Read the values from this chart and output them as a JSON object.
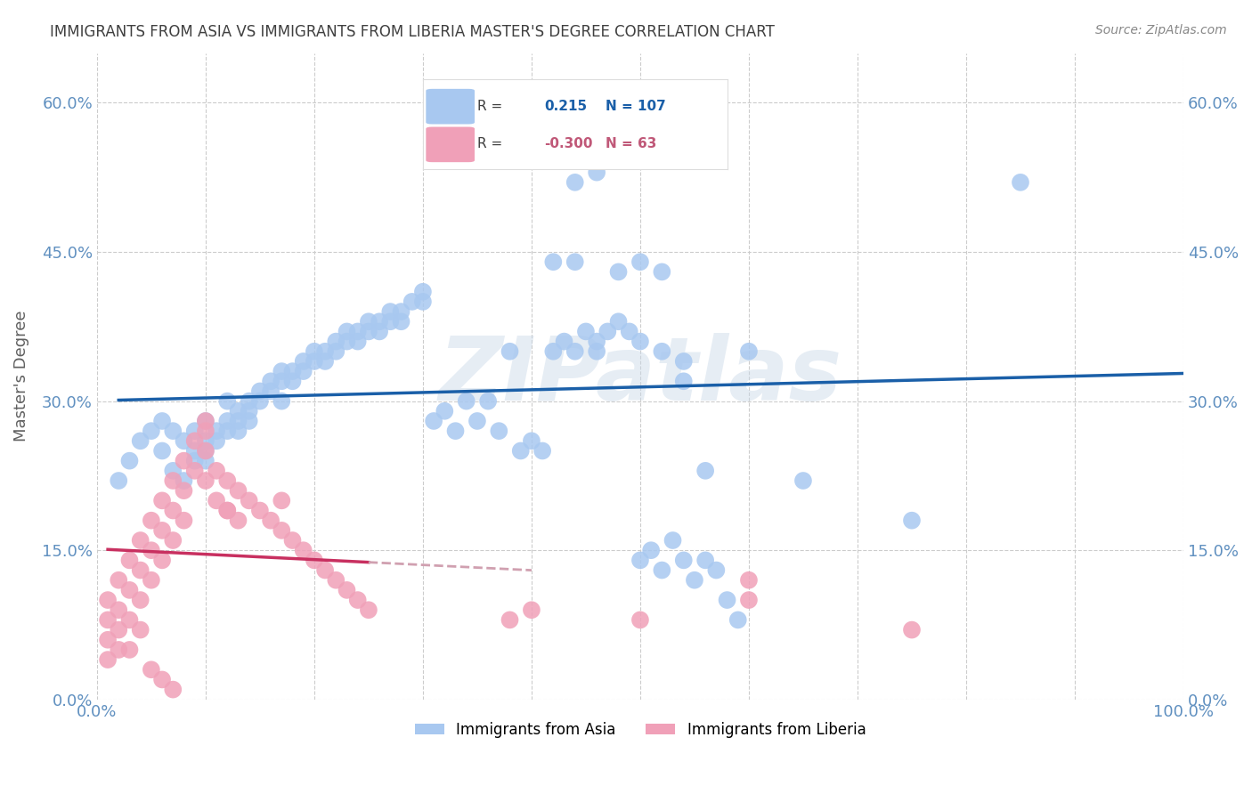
{
  "title": "IMMIGRANTS FROM ASIA VS IMMIGRANTS FROM LIBERIA MASTER'S DEGREE CORRELATION CHART",
  "source": "Source: ZipAtlas.com",
  "xlabel": "",
  "ylabel": "Master's Degree",
  "watermark": "ZIPatlas",
  "legend_blue_label": "Immigrants from Asia",
  "legend_pink_label": "Immigrants from Liberia",
  "R_blue": 0.215,
  "N_blue": 107,
  "R_pink": -0.3,
  "N_pink": 63,
  "xlim": [
    0.0,
    1.0
  ],
  "ylim": [
    0.0,
    0.65
  ],
  "xticks": [
    0.0,
    0.1,
    0.2,
    0.3,
    0.4,
    0.5,
    0.6,
    0.7,
    0.8,
    0.9,
    1.0
  ],
  "yticks": [
    0.0,
    0.15,
    0.3,
    0.45,
    0.6
  ],
  "ytick_labels": [
    "0.0%",
    "15.0%",
    "30.0%",
    "45.0%",
    "60.0%"
  ],
  "xtick_labels": [
    "0.0%",
    "",
    "",
    "",
    "",
    "",
    "",
    "",
    "",
    "",
    "100.0%"
  ],
  "color_blue": "#a8c8f0",
  "color_blue_line": "#1a5fa8",
  "color_pink": "#f0a0b8",
  "color_pink_line": "#c83060",
  "color_pink_line_dash": "#d0a0b0",
  "background": "#ffffff",
  "grid_color": "#cccccc",
  "title_color": "#404040",
  "axis_label_color": "#6090c0",
  "blue_points_x": [
    0.02,
    0.03,
    0.04,
    0.05,
    0.06,
    0.06,
    0.07,
    0.07,
    0.08,
    0.08,
    0.09,
    0.09,
    0.09,
    0.1,
    0.1,
    0.1,
    0.1,
    0.11,
    0.11,
    0.12,
    0.12,
    0.12,
    0.13,
    0.13,
    0.13,
    0.14,
    0.14,
    0.14,
    0.15,
    0.15,
    0.16,
    0.16,
    0.17,
    0.17,
    0.17,
    0.18,
    0.18,
    0.19,
    0.19,
    0.2,
    0.2,
    0.21,
    0.21,
    0.22,
    0.22,
    0.23,
    0.23,
    0.24,
    0.24,
    0.25,
    0.25,
    0.26,
    0.26,
    0.27,
    0.27,
    0.28,
    0.28,
    0.29,
    0.3,
    0.3,
    0.31,
    0.32,
    0.33,
    0.34,
    0.35,
    0.36,
    0.37,
    0.38,
    0.39,
    0.4,
    0.41,
    0.42,
    0.43,
    0.44,
    0.45,
    0.46,
    0.47,
    0.48,
    0.49,
    0.5,
    0.51,
    0.52,
    0.53,
    0.54,
    0.55,
    0.56,
    0.57,
    0.58,
    0.59,
    0.6,
    0.42,
    0.44,
    0.48,
    0.5,
    0.52,
    0.54,
    0.56,
    0.44,
    0.46,
    0.51,
    0.85,
    0.46,
    0.5,
    0.52,
    0.54,
    0.65,
    0.75
  ],
  "blue_points_y": [
    0.22,
    0.24,
    0.26,
    0.27,
    0.25,
    0.28,
    0.27,
    0.23,
    0.26,
    0.22,
    0.27,
    0.25,
    0.24,
    0.28,
    0.26,
    0.25,
    0.24,
    0.27,
    0.26,
    0.3,
    0.28,
    0.27,
    0.29,
    0.28,
    0.27,
    0.3,
    0.29,
    0.28,
    0.31,
    0.3,
    0.32,
    0.31,
    0.33,
    0.32,
    0.3,
    0.33,
    0.32,
    0.34,
    0.33,
    0.35,
    0.34,
    0.35,
    0.34,
    0.36,
    0.35,
    0.37,
    0.36,
    0.37,
    0.36,
    0.38,
    0.37,
    0.38,
    0.37,
    0.39,
    0.38,
    0.39,
    0.38,
    0.4,
    0.41,
    0.4,
    0.28,
    0.29,
    0.27,
    0.3,
    0.28,
    0.3,
    0.27,
    0.35,
    0.25,
    0.26,
    0.25,
    0.35,
    0.36,
    0.35,
    0.37,
    0.36,
    0.37,
    0.38,
    0.37,
    0.14,
    0.15,
    0.13,
    0.16,
    0.14,
    0.12,
    0.14,
    0.13,
    0.1,
    0.08,
    0.35,
    0.44,
    0.44,
    0.43,
    0.44,
    0.43,
    0.34,
    0.23,
    0.52,
    0.53,
    0.6,
    0.52,
    0.35,
    0.36,
    0.35,
    0.32,
    0.22,
    0.18
  ],
  "pink_points_x": [
    0.01,
    0.01,
    0.01,
    0.01,
    0.02,
    0.02,
    0.02,
    0.02,
    0.03,
    0.03,
    0.03,
    0.03,
    0.04,
    0.04,
    0.04,
    0.04,
    0.05,
    0.05,
    0.05,
    0.06,
    0.06,
    0.06,
    0.07,
    0.07,
    0.07,
    0.08,
    0.08,
    0.08,
    0.09,
    0.09,
    0.1,
    0.1,
    0.11,
    0.11,
    0.12,
    0.12,
    0.13,
    0.13,
    0.14,
    0.15,
    0.16,
    0.17,
    0.18,
    0.19,
    0.2,
    0.21,
    0.22,
    0.23,
    0.24,
    0.25,
    0.17,
    0.5,
    0.1,
    0.1,
    0.12,
    0.38,
    0.4,
    0.6,
    0.75,
    0.6,
    0.05,
    0.06,
    0.07
  ],
  "pink_points_y": [
    0.1,
    0.08,
    0.06,
    0.04,
    0.12,
    0.09,
    0.07,
    0.05,
    0.14,
    0.11,
    0.08,
    0.05,
    0.16,
    0.13,
    0.1,
    0.07,
    0.18,
    0.15,
    0.12,
    0.2,
    0.17,
    0.14,
    0.22,
    0.19,
    0.16,
    0.24,
    0.21,
    0.18,
    0.26,
    0.23,
    0.28,
    0.25,
    0.23,
    0.2,
    0.22,
    0.19,
    0.21,
    0.18,
    0.2,
    0.19,
    0.18,
    0.17,
    0.16,
    0.15,
    0.14,
    0.13,
    0.12,
    0.11,
    0.1,
    0.09,
    0.2,
    0.08,
    0.22,
    0.27,
    0.19,
    0.08,
    0.09,
    0.12,
    0.07,
    0.1,
    0.03,
    0.02,
    0.01
  ]
}
